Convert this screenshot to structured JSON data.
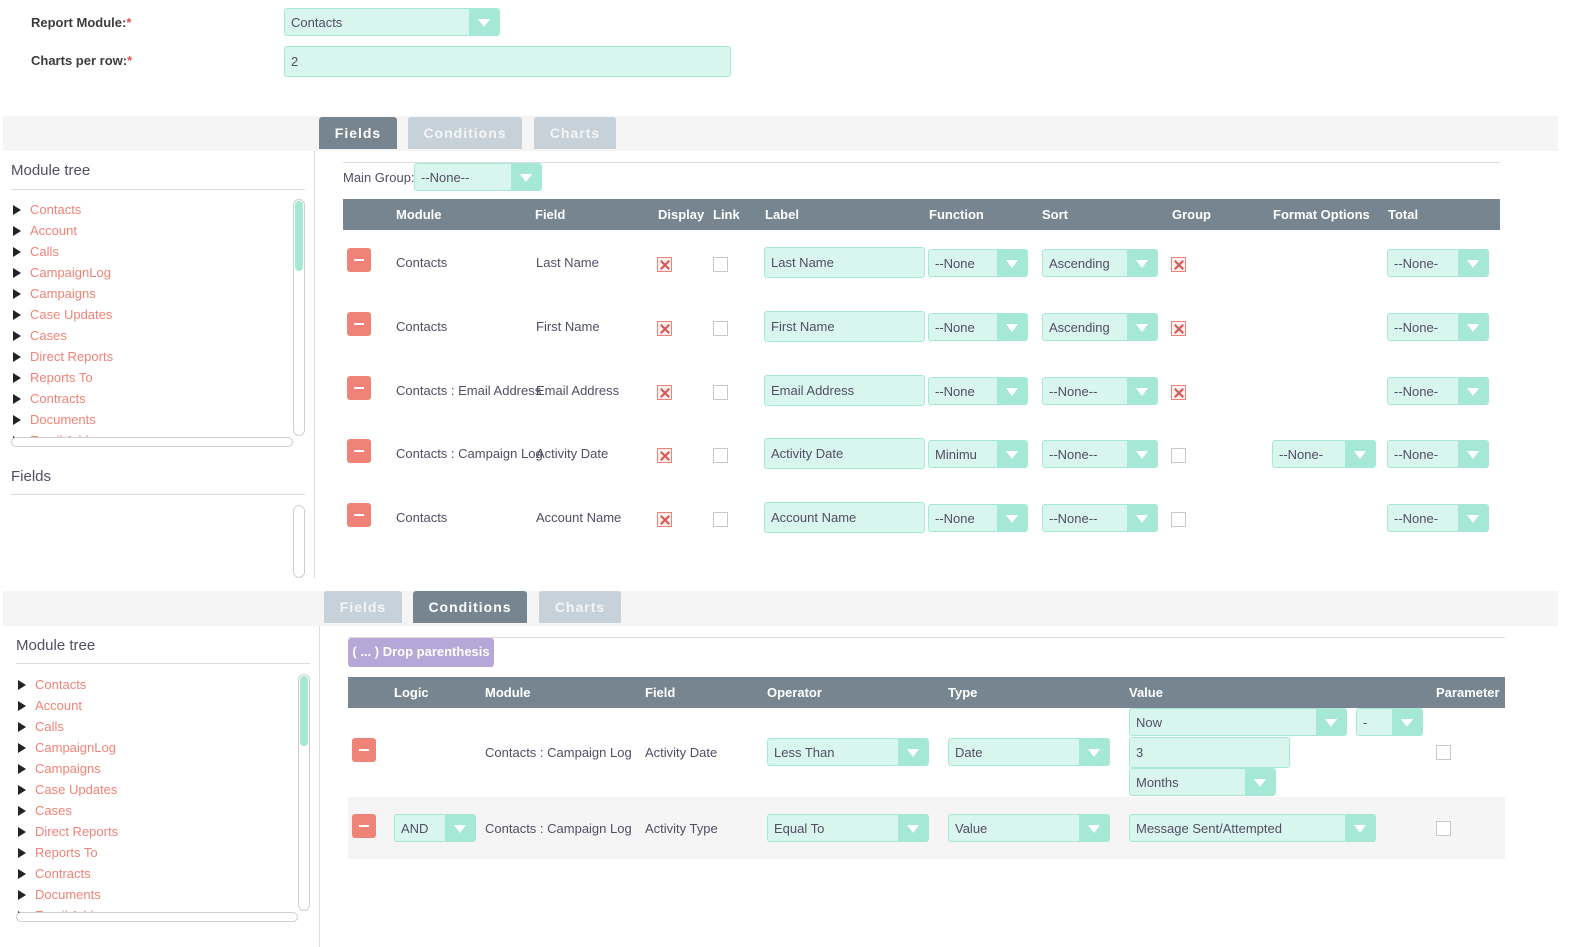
{
  "form": {
    "report_module_label": "Report Module:",
    "report_module_value": "Contacts",
    "charts_per_row_label": "Charts per row:",
    "charts_per_row_value": "2",
    "required_mark": "*"
  },
  "tabs_top": [
    "Fields",
    "Conditions",
    "Charts"
  ],
  "tabs_bottom": [
    "Fields",
    "Conditions",
    "Charts"
  ],
  "module_tree": {
    "title": "Module tree",
    "items": [
      "Contacts",
      "Account",
      "Calls",
      "CampaignLog",
      "Campaigns",
      "Case Updates",
      "Cases",
      "Direct Reports",
      "Reports To",
      "Contracts",
      "Documents",
      "Email Add..."
    ]
  },
  "fields_panel_title": "Fields",
  "fields_section": {
    "main_group_label": "Main Group:",
    "main_group_value": "--None--",
    "headers": [
      "Module",
      "Field",
      "Display",
      "Link",
      "Label",
      "Function",
      "Sort",
      "Group",
      "Format Options",
      "Total"
    ],
    "rows": [
      {
        "module": "Contacts",
        "field": "Last Name",
        "display": true,
        "link": false,
        "label": "Last Name",
        "function": "--None",
        "sort": "Ascending",
        "group": true,
        "format": "",
        "total": "--None-"
      },
      {
        "module": "Contacts",
        "field": "First Name",
        "display": true,
        "link": false,
        "label": "First Name",
        "function": "--None",
        "sort": "Ascending",
        "group": true,
        "format": "",
        "total": "--None-"
      },
      {
        "module": "Contacts : Email Address",
        "field": "Email Address",
        "display": true,
        "link": false,
        "label": "Email Address",
        "function": "--None",
        "sort": "--None--",
        "group": true,
        "format": "",
        "total": "--None-"
      },
      {
        "module": "Contacts : Campaign Log",
        "field": "Activity Date",
        "display": true,
        "link": false,
        "label": "Activity Date",
        "function": "Minimu",
        "sort": "--None--",
        "group": false,
        "format": "--None-",
        "total": "--None-"
      },
      {
        "module": "Contacts",
        "field": "Account Name",
        "display": true,
        "link": false,
        "label": "Account Name",
        "function": "--None",
        "sort": "--None--",
        "group": false,
        "format": "",
        "total": "--None-"
      }
    ]
  },
  "conditions_section": {
    "drop_parenthesis_label": "( ... ) Drop parenthesis",
    "headers": [
      "Logic",
      "Module",
      "Field",
      "Operator",
      "Type",
      "Value",
      "Parameter"
    ],
    "rows": [
      {
        "logic": "",
        "module": "Contacts : Campaign Log",
        "field": "Activity Date",
        "operator": "Less Than",
        "type": "Date",
        "value_1": "Now",
        "value_sign": "-",
        "value_amount": "3",
        "value_unit": "Months",
        "parameter": false
      },
      {
        "logic": "AND",
        "module": "Contacts : Campaign Log",
        "field": "Activity Type",
        "operator": "Equal To",
        "type": "Value",
        "value_1": "Message Sent/Attempted",
        "parameter": false
      }
    ]
  },
  "colors": {
    "accent_mint": "#a5e8d6",
    "input_bg": "#d8f5ee",
    "header_gray": "#778591",
    "link_coral": "#f08377",
    "drop_purple": "#b7a7d8"
  }
}
